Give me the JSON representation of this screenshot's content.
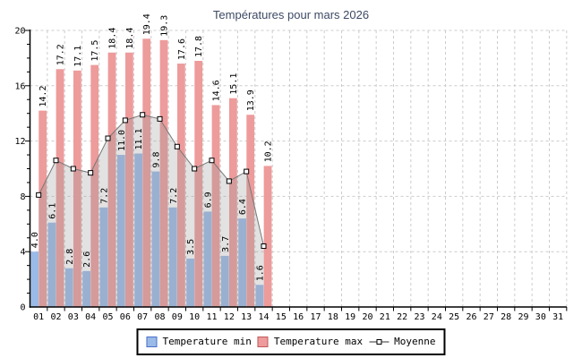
{
  "title": "Températures pour mars 2026",
  "legend": {
    "min_label": "Temperature min",
    "max_label": "Temperature max",
    "moyenne_label": "Moyenne"
  },
  "colors": {
    "min_bar": "#9ABAE8",
    "max_bar": "#EE9B9B",
    "min_swatch_border": "#4A6FC8",
    "max_swatch_border": "#C05A5A",
    "area_fill": "rgba(150,150,150,0.28)",
    "line": "#777777",
    "marker_fill": "#FFFFFF",
    "marker_border": "#000000",
    "grid": "#CCCCCC",
    "axis": "#000000",
    "label_text": "#1A1A1A"
  },
  "chart_data": {
    "type": "bar",
    "title": "Températures pour mars 2026",
    "categories": [
      "01",
      "02",
      "03",
      "04",
      "05",
      "06",
      "07",
      "08",
      "09",
      "10",
      "11",
      "12",
      "13",
      "14",
      "15",
      "16",
      "17",
      "18",
      "19",
      "20",
      "21",
      "22",
      "23",
      "24",
      "25",
      "26",
      "27",
      "28",
      "29",
      "30",
      "31"
    ],
    "series": [
      {
        "name": "Temperature min",
        "type": "bar",
        "values": [
          4.0,
          6.1,
          2.8,
          2.6,
          7.2,
          11.0,
          11.1,
          9.8,
          7.2,
          3.5,
          6.9,
          3.7,
          6.4,
          1.6
        ]
      },
      {
        "name": "Temperature max",
        "type": "bar",
        "values": [
          14.2,
          17.2,
          17.1,
          17.5,
          18.4,
          18.4,
          19.4,
          19.3,
          17.6,
          17.8,
          14.6,
          15.1,
          13.9,
          10.2
        ]
      },
      {
        "name": "Moyenne",
        "type": "line",
        "values": [
          8.1,
          10.6,
          10.0,
          9.7,
          12.2,
          13.5,
          13.9,
          13.6,
          11.6,
          10.0,
          10.6,
          9.1,
          9.8,
          4.4
        ]
      }
    ],
    "ylim": [
      0,
      20
    ],
    "yticks": [
      0,
      4,
      8,
      12,
      16,
      20
    ],
    "y_minor_tick_step": 1,
    "grid": "dashed",
    "legend_position": "bottom",
    "bar_label_decimals": 1
  }
}
